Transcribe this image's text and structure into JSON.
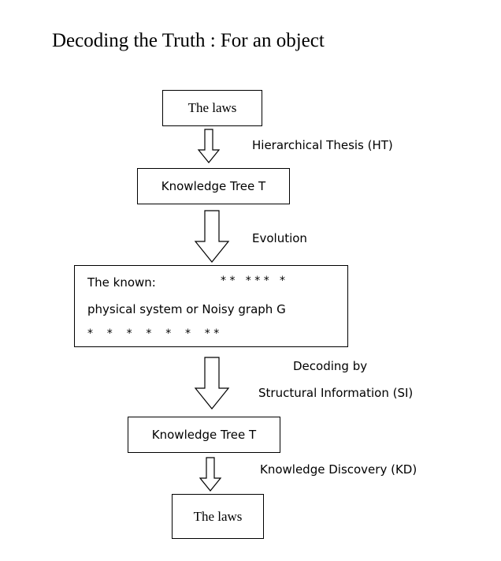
{
  "title": "Decoding the Truth : For an object",
  "nodes": {
    "laws_top": "The laws",
    "tree_top": "Knowledge Tree T",
    "known": {
      "line1_label": "The known:",
      "line1_stars": "* *   * * *   *",
      "line2": "physical system or Noisy graph G",
      "line3_stars": "*    *    *    *    *    *    * *"
    },
    "tree_bottom": "Knowledge Tree T",
    "laws_bottom": "The laws"
  },
  "edges": {
    "ht": "Hierarchical Thesis (HT)",
    "evolution": "Evolution",
    "decoding_line1": "Decoding by",
    "decoding_line2": "Structural Information (SI)",
    "kd": "Knowledge Discovery (KD)"
  }
}
